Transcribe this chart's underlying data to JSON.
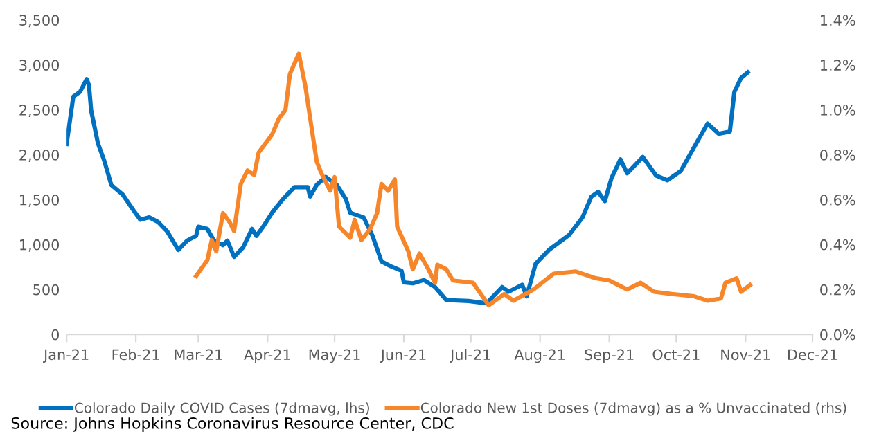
{
  "chart_data": {
    "type": "line",
    "x": [
      "2021-01-01",
      "2021-01-04",
      "2021-01-07",
      "2021-01-10",
      "2021-01-11",
      "2021-01-12",
      "2021-01-15",
      "2021-01-18",
      "2021-01-21",
      "2021-01-26",
      "2021-01-31",
      "2021-02-03",
      "2021-02-07",
      "2021-02-11",
      "2021-02-15",
      "2021-02-20",
      "2021-02-24",
      "2021-02-28",
      "2021-03-01",
      "2021-03-05",
      "2021-03-08",
      "2021-03-12",
      "2021-03-14",
      "2021-03-17",
      "2021-03-21",
      "2021-03-25",
      "2021-03-27",
      "2021-03-30",
      "2021-04-03",
      "2021-04-08",
      "2021-04-13",
      "2021-04-19",
      "2021-04-20",
      "2021-04-23",
      "2021-04-27",
      "2021-05-02",
      "2021-05-06",
      "2021-05-08",
      "2021-05-14",
      "2021-05-18",
      "2021-05-22",
      "2021-05-26",
      "2021-05-31",
      "2021-06-01",
      "2021-06-05",
      "2021-06-10",
      "2021-06-15",
      "2021-06-20",
      "2021-06-30",
      "2021-07-08",
      "2021-07-15",
      "2021-07-18",
      "2021-07-24",
      "2021-07-26",
      "2021-07-30",
      "2021-08-05",
      "2021-08-14",
      "2021-08-20",
      "2021-08-24",
      "2021-08-27",
      "2021-08-30",
      "2021-09-02",
      "2021-09-06",
      "2021-09-09",
      "2021-09-16",
      "2021-09-22",
      "2021-09-27",
      "2021-10-03",
      "2021-10-10",
      "2021-10-15",
      "2021-10-20",
      "2021-10-25",
      "2021-10-27",
      "2021-10-30",
      "2021-11-02"
    ],
    "series": [
      {
        "name": "Colorado Daily COVID Cases (7dmavg, lhs)",
        "color": "#0070c0",
        "values": [
          2120,
          2647,
          2699,
          2843,
          2776,
          2492,
          2130,
          1923,
          1665,
          1561,
          1380,
          1277,
          1303,
          1251,
          1148,
          941,
          1044,
          1096,
          1199,
          1174,
          1044,
          993,
          1044,
          863,
          967,
          1174,
          1096,
          1199,
          1355,
          1510,
          1639,
          1639,
          1535,
          1665,
          1753,
          1665,
          1510,
          1355,
          1303,
          1096,
          812,
          760,
          708,
          579,
          569,
          605,
          527,
          383,
          372,
          346,
          527,
          476,
          553,
          424,
          786,
          941,
          1107,
          1303,
          1535,
          1587,
          1484,
          1742,
          1949,
          1794,
          1975,
          1768,
          1716,
          1820,
          2130,
          2347,
          2233,
          2259,
          2699,
          2854,
          2916
        ]
      },
      {
        "name": "Colorado New 1st Doses (7dmavg) as a % Unvaccinated (rhs)",
        "color": "#f7862a",
        "axis": "y2",
        "x": [
          "2021-02-28",
          "2021-03-05",
          "2021-03-07",
          "2021-03-09",
          "2021-03-12",
          "2021-03-15",
          "2021-03-17",
          "2021-03-20",
          "2021-03-23",
          "2021-03-26",
          "2021-03-28",
          "2021-03-31",
          "2021-04-03",
          "2021-04-06",
          "2021-04-09",
          "2021-04-11",
          "2021-04-15",
          "2021-04-18",
          "2021-04-21",
          "2021-04-23",
          "2021-04-25",
          "2021-04-29",
          "2021-05-01",
          "2021-05-03",
          "2021-05-08",
          "2021-05-10",
          "2021-05-13",
          "2021-05-17",
          "2021-05-20",
          "2021-05-22",
          "2021-05-25",
          "2021-05-28",
          "2021-05-29",
          "2021-06-03",
          "2021-06-05",
          "2021-06-08",
          "2021-06-12",
          "2021-06-15",
          "2021-06-16",
          "2021-06-20",
          "2021-06-23",
          "2021-07-02",
          "2021-07-09",
          "2021-07-16",
          "2021-07-20",
          "2021-07-29",
          "2021-08-07",
          "2021-08-17",
          "2021-08-26",
          "2021-09-01",
          "2021-09-09",
          "2021-09-15",
          "2021-09-21",
          "2021-09-29",
          "2021-10-09",
          "2021-10-15",
          "2021-10-21",
          "2021-10-23",
          "2021-10-28",
          "2021-10-30",
          "2021-11-03"
        ],
        "values": [
          0.26,
          0.33,
          0.42,
          0.37,
          0.54,
          0.5,
          0.46,
          0.67,
          0.73,
          0.71,
          0.81,
          0.85,
          0.89,
          0.96,
          1.0,
          1.16,
          1.25,
          1.1,
          0.9,
          0.77,
          0.72,
          0.64,
          0.7,
          0.48,
          0.43,
          0.51,
          0.42,
          0.47,
          0.54,
          0.67,
          0.64,
          0.69,
          0.48,
          0.37,
          0.29,
          0.36,
          0.29,
          0.23,
          0.31,
          0.29,
          0.24,
          0.23,
          0.13,
          0.18,
          0.15,
          0.2,
          0.27,
          0.28,
          0.25,
          0.24,
          0.2,
          0.23,
          0.19,
          0.18,
          0.17,
          0.15,
          0.16,
          0.23,
          0.25,
          0.19,
          0.22
        ]
      }
    ],
    "xlim": [
      "2021-01-01",
      "2021-12-01"
    ],
    "xticks": [
      {
        "value": "2021-01-01",
        "label": "Jan-21"
      },
      {
        "value": "2021-02-01",
        "label": "Feb-21"
      },
      {
        "value": "2021-03-01",
        "label": "Mar-21"
      },
      {
        "value": "2021-04-01",
        "label": "Apr-21"
      },
      {
        "value": "2021-05-01",
        "label": "May-21"
      },
      {
        "value": "2021-06-01",
        "label": "Jun-21"
      },
      {
        "value": "2021-07-01",
        "label": "Jul-21"
      },
      {
        "value": "2021-08-01",
        "label": "Aug-21"
      },
      {
        "value": "2021-09-01",
        "label": "Sep-21"
      },
      {
        "value": "2021-10-01",
        "label": "Oct-21"
      },
      {
        "value": "2021-11-01",
        "label": "Nov-21"
      },
      {
        "value": "2021-12-01",
        "label": "Dec-21"
      }
    ],
    "ylim": [
      0,
      3500
    ],
    "yticks": [
      0,
      {
        "value": 500,
        "label": "500"
      },
      {
        "value": 1000,
        "label": "1,000"
      },
      {
        "value": 1500,
        "label": "1,500"
      },
      {
        "value": 2000,
        "label": "2,000"
      },
      {
        "value": 2500,
        "label": "2,500"
      },
      {
        "value": 3000,
        "label": "3,000"
      },
      {
        "value": 3500,
        "label": "3,500"
      }
    ],
    "y2lim": [
      0,
      1.4
    ],
    "y2ticks": [
      {
        "value": 0,
        "label": "0.0%"
      },
      {
        "value": 0.2,
        "label": "0.2%"
      },
      {
        "value": 0.4,
        "label": "0.4%"
      },
      {
        "value": 0.6,
        "label": "0.6%"
      },
      {
        "value": 0.8,
        "label": "0.8%"
      },
      {
        "value": 1.0,
        "label": "1.0%"
      },
      {
        "value": 1.2,
        "label": "1.2%"
      },
      {
        "value": 1.4,
        "label": "1.4%"
      }
    ],
    "grid": false,
    "legend": "bottom",
    "annotations": [
      "Source: Johns Hopkins Coronavirus Resource Center, CDC"
    ]
  }
}
